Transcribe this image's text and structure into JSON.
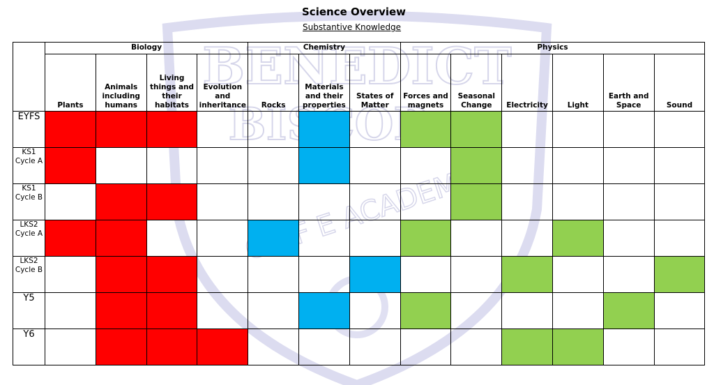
{
  "header": {
    "title": "Science Overview",
    "subtitle": "Substantive Knowledge"
  },
  "watermark": {
    "line1": "BENEDICT",
    "line2": "BISCOP",
    "line3": "C OF E ACADEMY"
  },
  "colors": {
    "biology": "#ff0000",
    "chemistry": "#00b0f0",
    "physics": "#92d050"
  },
  "groups": [
    {
      "label": "Biology"
    },
    {
      "label": "Chemistry"
    },
    {
      "label": "Physics"
    }
  ],
  "subjects": [
    {
      "label": "Plants"
    },
    {
      "label": "Animals including humans"
    },
    {
      "label": "Living things and their habitats"
    },
    {
      "label": "Evolution and inheritance"
    },
    {
      "label": "Rocks"
    },
    {
      "label": "Materials and their properties"
    },
    {
      "label": "States of Matter"
    },
    {
      "label": "Forces and magnets"
    },
    {
      "label": "Seasonal Change"
    },
    {
      "label": "Electricity"
    },
    {
      "label": "Light"
    },
    {
      "label": "Earth and Space"
    },
    {
      "label": "Sound"
    }
  ],
  "rows": [
    {
      "label": "EYFS",
      "cells": [
        "red",
        "red",
        "red",
        "",
        "",
        "blue",
        "",
        "green",
        "green",
        "",
        "",
        "",
        ""
      ]
    },
    {
      "label": "KS1 Cycle A",
      "cells": [
        "red",
        "",
        "",
        "",
        "",
        "blue",
        "",
        "",
        "green",
        "",
        "",
        "",
        ""
      ]
    },
    {
      "label": "KS1 Cycle B",
      "cells": [
        "",
        "red",
        "red",
        "",
        "",
        "",
        "",
        "",
        "green",
        "",
        "",
        "",
        ""
      ]
    },
    {
      "label": "LKS2 Cycle A",
      "cells": [
        "red",
        "red",
        "",
        "",
        "blue",
        "",
        "",
        "green",
        "",
        "",
        "green",
        "",
        ""
      ]
    },
    {
      "label": "LKS2 Cycle B",
      "cells": [
        "",
        "red",
        "red",
        "",
        "",
        "",
        "blue",
        "",
        "",
        "green",
        "",
        "",
        "green"
      ]
    },
    {
      "label": "Y5",
      "cells": [
        "",
        "red",
        "red",
        "",
        "",
        "blue",
        "",
        "green",
        "",
        "",
        "",
        "green",
        ""
      ]
    },
    {
      "label": "Y6",
      "cells": [
        "",
        "red",
        "red",
        "red",
        "",
        "",
        "",
        "",
        "",
        "green",
        "green",
        "",
        ""
      ]
    }
  ]
}
